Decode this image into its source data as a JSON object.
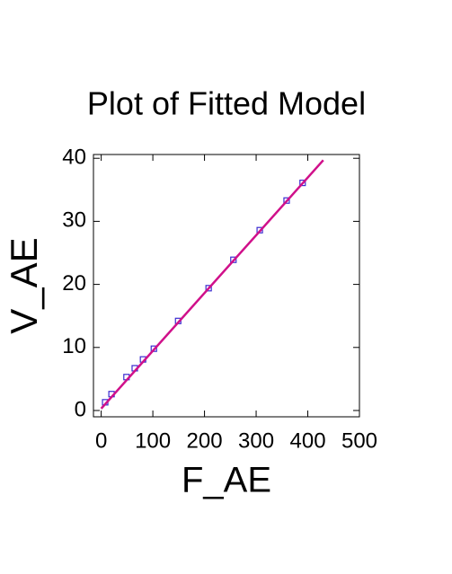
{
  "chart_data": {
    "type": "scatter",
    "title": "Plot of Fitted Model",
    "x_label": "F_AE",
    "y_label": "V_AE",
    "xlim": [
      -15,
      500
    ],
    "ylim": [
      -1,
      40.6
    ],
    "xticks": [
      0,
      100,
      200,
      300,
      400,
      500
    ],
    "yticks": [
      0,
      10,
      20,
      30,
      40
    ],
    "series": [
      {
        "color": "#3b2bd0",
        "x": [
          7.7,
          20,
          49,
          65,
          81,
          102,
          149,
          208,
          256,
          307,
          359,
          390
        ],
        "values": [
          1.3,
          2.6,
          5.3,
          6.7,
          8.1,
          9.8,
          14.2,
          19.4,
          23.9,
          28.6,
          33.3,
          36.1
        ]
      },
      {
        "color": "#d0108a",
        "line": true,
        "x": [
          0,
          430
        ],
        "values": [
          0.3,
          39.7
        ]
      }
    ]
  }
}
